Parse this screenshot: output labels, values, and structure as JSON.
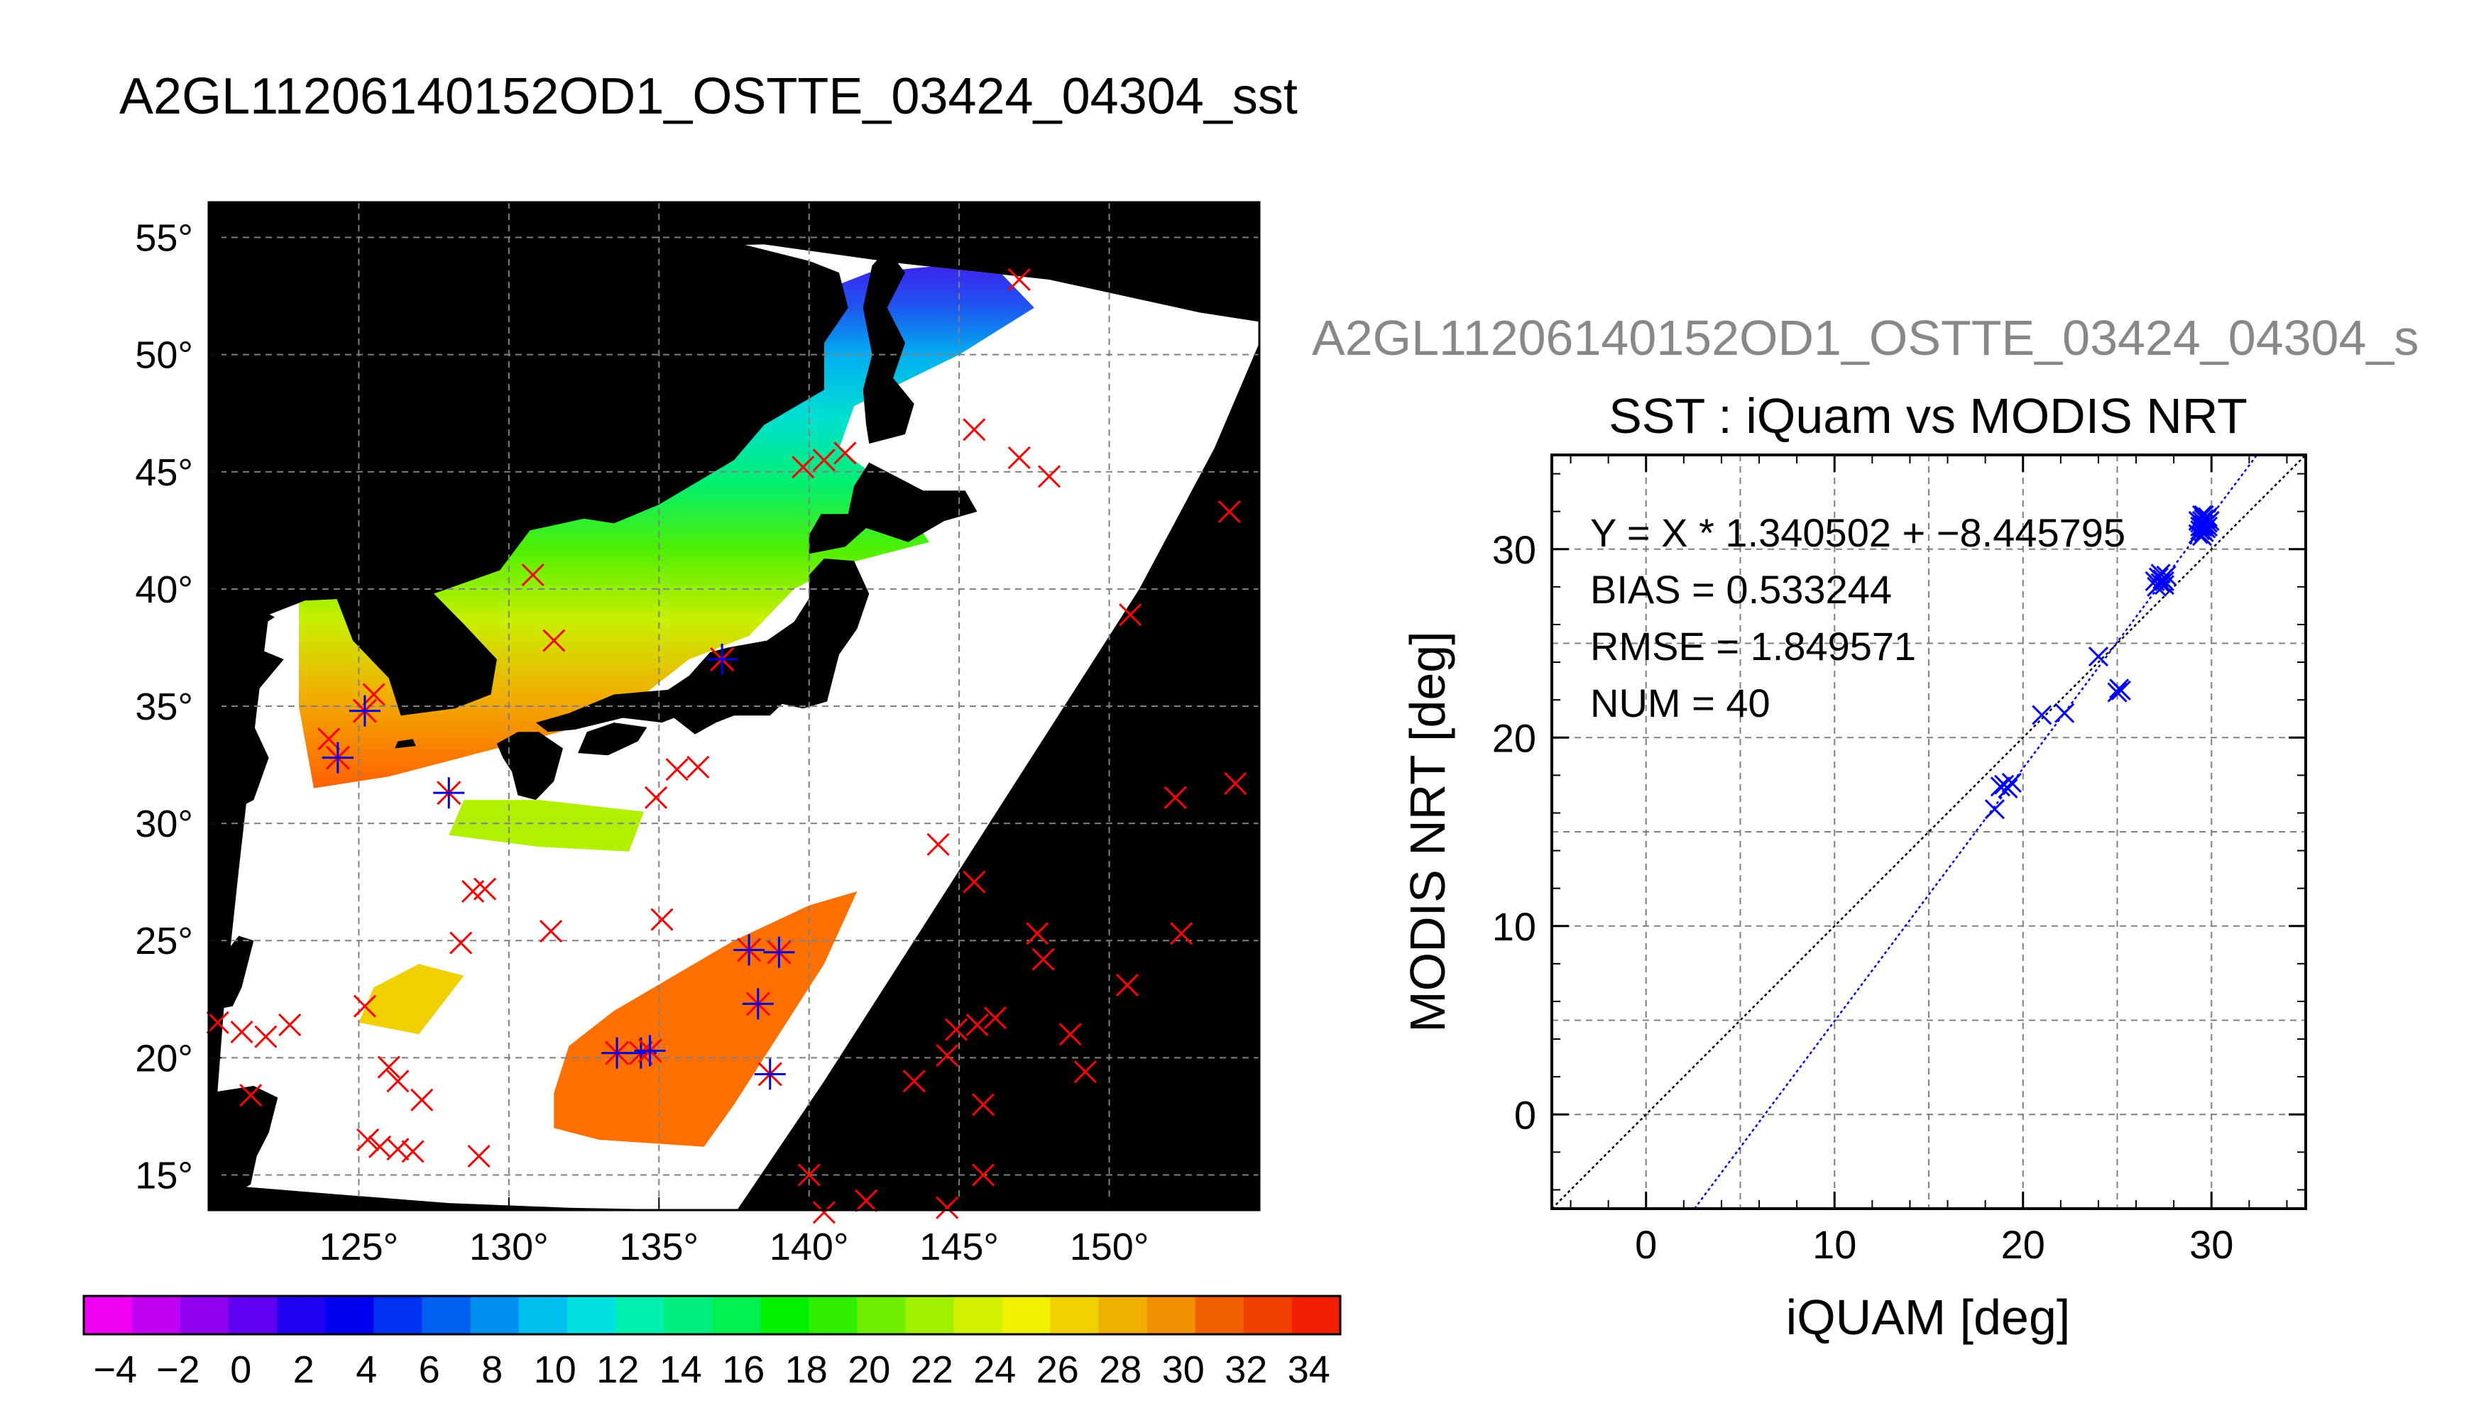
{
  "main_title": "A2GL11206140152OD1_OSTTE_03424_04304_sst",
  "map": {
    "lon_ticks": [
      125,
      130,
      135,
      140,
      145,
      150
    ],
    "lat_ticks": [
      15,
      20,
      25,
      30,
      35,
      40,
      45,
      50,
      55
    ],
    "lon_range": [
      120,
      155
    ],
    "lat_range": [
      13.5,
      56.5
    ],
    "degree_symbol": "°",
    "marker_color": "#ff0000",
    "match_marker_color": "#0000dd",
    "matchups_overlay": [
      [
        125.2,
        34.8
      ],
      [
        124.3,
        32.8
      ],
      [
        128.0,
        31.3
      ],
      [
        137.1,
        37.0
      ],
      [
        138.0,
        24.6
      ],
      [
        139.0,
        24.5
      ],
      [
        138.3,
        22.3
      ],
      [
        138.7,
        19.3
      ],
      [
        133.6,
        20.2
      ],
      [
        134.4,
        20.2
      ],
      [
        134.7,
        20.3
      ]
    ],
    "buoys": [
      [
        147.0,
        53.2
      ],
      [
        145.5,
        46.8
      ],
      [
        147.0,
        45.6
      ],
      [
        148.0,
        44.8
      ],
      [
        139.8,
        45.2
      ],
      [
        140.5,
        45.5
      ],
      [
        141.2,
        45.8
      ],
      [
        154.0,
        43.3
      ],
      [
        130.8,
        40.6
      ],
      [
        131.5,
        37.8
      ],
      [
        150.7,
        38.9
      ],
      [
        125.5,
        35.5
      ],
      [
        124.0,
        33.6
      ],
      [
        137.1,
        37.0
      ],
      [
        134.9,
        31.1
      ],
      [
        135.6,
        32.3
      ],
      [
        136.3,
        32.4
      ],
      [
        144.3,
        29.1
      ],
      [
        152.2,
        31.1
      ],
      [
        154.2,
        31.7
      ],
      [
        145.5,
        27.5
      ],
      [
        128.8,
        27.1
      ],
      [
        129.2,
        27.2
      ],
      [
        128.4,
        24.9
      ],
      [
        131.4,
        25.4
      ],
      [
        135.1,
        25.9
      ],
      [
        147.6,
        25.3
      ],
      [
        147.8,
        24.2
      ],
      [
        152.4,
        25.3
      ],
      [
        150.6,
        23.1
      ],
      [
        125.2,
        22.2
      ],
      [
        120.3,
        21.5
      ],
      [
        121.1,
        21.1
      ],
      [
        121.9,
        20.9
      ],
      [
        122.7,
        21.4
      ],
      [
        144.9,
        21.2
      ],
      [
        145.6,
        21.4
      ],
      [
        146.2,
        21.7
      ],
      [
        148.7,
        21.0
      ],
      [
        149.2,
        19.4
      ],
      [
        144.6,
        20.1
      ],
      [
        143.5,
        19.0
      ],
      [
        126.3,
        19.0
      ],
      [
        126.0,
        19.6
      ],
      [
        121.4,
        18.4
      ],
      [
        127.1,
        18.2
      ],
      [
        125.3,
        16.5
      ],
      [
        125.7,
        16.2
      ],
      [
        126.3,
        16.1
      ],
      [
        126.8,
        16.0
      ],
      [
        129.0,
        15.8
      ],
      [
        145.8,
        18.0
      ],
      [
        145.8,
        15.0
      ],
      [
        140.0,
        15.0
      ],
      [
        141.9,
        13.9
      ],
      [
        144.6,
        13.6
      ],
      [
        140.5,
        13.4
      ]
    ]
  },
  "colorbar": {
    "labels": [
      "−4",
      "−2",
      "0",
      "2",
      "4",
      "6",
      "8",
      "10",
      "12",
      "14",
      "16",
      "18",
      "20",
      "22",
      "24",
      "26",
      "28",
      "30",
      "32",
      "34"
    ],
    "range": [
      -5,
      35
    ],
    "colors": [
      "#f000f0",
      "#c000f0",
      "#9000f0",
      "#6000f0",
      "#2000f0",
      "#0000f0",
      "#0030f0",
      "#0060f0",
      "#0090f0",
      "#00c0f0",
      "#00e0e0",
      "#00f0b0",
      "#00f080",
      "#00f050",
      "#00f000",
      "#30f000",
      "#70f000",
      "#a0f000",
      "#d0f000",
      "#f0f000",
      "#f0d000",
      "#f0b000",
      "#f09000",
      "#f06000",
      "#f04000",
      "#f02000"
    ]
  },
  "scatter_title": "A2GL11206140152OD1_OSTTE_03424_04304_s",
  "chart_data": {
    "type": "scatter",
    "title": "SST : iQuam vs MODIS NRT",
    "xlabel": "iQUAM [deg]",
    "ylabel": "MODIS NRT [deg]",
    "xlim": [
      -5,
      35
    ],
    "ylim": [
      -5,
      35
    ],
    "xticks": [
      0,
      10,
      20,
      30
    ],
    "yticks": [
      0,
      10,
      20,
      30
    ],
    "grid": true,
    "stats": [
      "Y = X * 1.340502 + −8.445795",
      "BIAS = 0.533244",
      "RMSE = 1.849571",
      "NUM = 40"
    ],
    "fit": {
      "slope": 1.340502,
      "intercept": -8.445795,
      "color": "#0000ff"
    },
    "identity_line": {
      "color": "#000000"
    },
    "marker_color": "#0000ff",
    "points": [
      [
        18.5,
        16.2
      ],
      [
        18.8,
        17.4
      ],
      [
        19.0,
        17.5
      ],
      [
        19.2,
        17.3
      ],
      [
        19.4,
        17.6
      ],
      [
        21.0,
        21.2
      ],
      [
        22.2,
        21.3
      ],
      [
        24.0,
        24.3
      ],
      [
        25.0,
        22.4
      ],
      [
        25.2,
        22.5
      ],
      [
        25.1,
        22.6
      ],
      [
        27.0,
        28.3
      ],
      [
        27.2,
        28.5
      ],
      [
        27.3,
        28.2
      ],
      [
        27.4,
        28.4
      ],
      [
        27.5,
        28.1
      ],
      [
        27.6,
        28.6
      ],
      [
        27.1,
        28.0
      ],
      [
        27.3,
        28.7
      ],
      [
        27.5,
        28.3
      ],
      [
        29.3,
        30.8
      ],
      [
        29.4,
        31.2
      ],
      [
        29.5,
        31.5
      ],
      [
        29.6,
        31.3
      ],
      [
        29.7,
        31.6
      ],
      [
        29.8,
        31.4
      ],
      [
        29.5,
        31.8
      ],
      [
        29.4,
        31.0
      ],
      [
        29.6,
        30.9
      ],
      [
        29.7,
        31.1
      ],
      [
        29.8,
        31.7
      ],
      [
        29.9,
        31.5
      ],
      [
        29.5,
        31.2
      ],
      [
        29.6,
        31.6
      ],
      [
        29.4,
        31.4
      ],
      [
        29.7,
        31.3
      ],
      [
        29.3,
        31.5
      ],
      [
        29.8,
        31.2
      ],
      [
        29.6,
        31.8
      ],
      [
        29.5,
        30.7
      ]
    ]
  }
}
